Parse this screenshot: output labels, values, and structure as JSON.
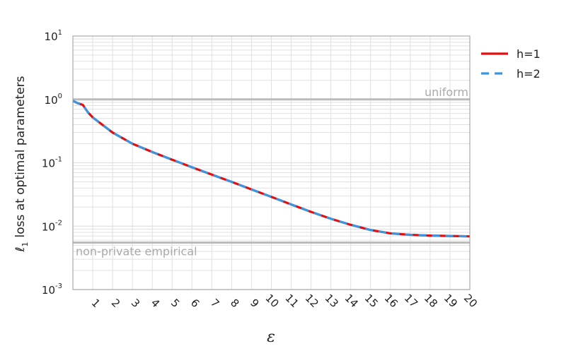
{
  "chart_data": {
    "type": "line",
    "xlabel": "ε",
    "ylabel_main": "loss at optimal parameters",
    "ylabel_symbol": "ℓ",
    "ylabel_symbol_sub": "1",
    "yscale": "log",
    "xlim": [
      0,
      20
    ],
    "ylim": [
      0.001,
      10
    ],
    "y_ticks": [
      {
        "value": 10,
        "base": "10",
        "exp": "1"
      },
      {
        "value": 1,
        "base": "10",
        "exp": "0"
      },
      {
        "value": 0.1,
        "base": "10",
        "exp": "-1"
      },
      {
        "value": 0.01,
        "base": "10",
        "exp": "-2"
      },
      {
        "value": 0.001,
        "base": "10",
        "exp": "-3"
      }
    ],
    "x_tick_labels": [
      "1",
      "2",
      "3",
      "4",
      "5",
      "6",
      "7",
      "8",
      "9",
      "10",
      "11",
      "12",
      "13",
      "14",
      "15",
      "16",
      "17",
      "18",
      "19",
      "20"
    ],
    "grid": true,
    "legend_position": "outside-right-top",
    "series": [
      {
        "name": "h=1",
        "color": "#e01010",
        "style": "solid",
        "x": [
          0,
          0.25,
          0.5,
          0.75,
          1,
          2,
          3,
          4,
          5,
          6,
          7,
          8,
          9,
          10,
          11,
          12,
          13,
          14,
          15,
          16,
          17,
          18,
          19,
          20
        ],
        "y": [
          0.95,
          0.87,
          0.82,
          0.63,
          0.52,
          0.3,
          0.2,
          0.148,
          0.112,
          0.085,
          0.065,
          0.05,
          0.038,
          0.029,
          0.022,
          0.0168,
          0.0131,
          0.0105,
          0.0087,
          0.0077,
          0.0073,
          0.0071,
          0.007,
          0.0069
        ]
      },
      {
        "name": "h=2",
        "color": "#3a96e0",
        "style": "dashed",
        "x": [
          0,
          0.25,
          0.5,
          0.75,
          1,
          2,
          3,
          4,
          5,
          6,
          7,
          8,
          9,
          10,
          11,
          12,
          13,
          14,
          15,
          16,
          17,
          18,
          19,
          20
        ],
        "y": [
          0.95,
          0.87,
          0.82,
          0.63,
          0.52,
          0.3,
          0.2,
          0.148,
          0.112,
          0.085,
          0.065,
          0.05,
          0.038,
          0.029,
          0.022,
          0.0168,
          0.0131,
          0.0105,
          0.0087,
          0.0077,
          0.0073,
          0.0071,
          0.007,
          0.0069
        ]
      }
    ],
    "reference_lines": [
      {
        "label": "uniform",
        "y": 1.0,
        "color": "#bbbbbb",
        "label_position": "right"
      },
      {
        "label": "non-private empirical",
        "y": 0.0055,
        "color": "#bbbbbb",
        "label_position": "left"
      }
    ]
  }
}
